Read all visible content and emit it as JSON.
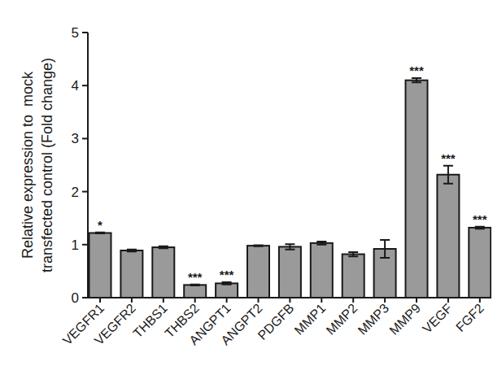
{
  "chart_data": {
    "type": "bar",
    "ylabel": [
      "Relative expression to  mock",
      "transfected control (Fold change)"
    ],
    "categories": [
      "VEGFR1",
      "VEGFR2",
      "THBS1",
      "THBS2",
      "ANGPT1",
      "ANGPT2",
      "PDGFB",
      "MMP1",
      "MMP2",
      "MMP3",
      "MMP9",
      "VEGF",
      "FGF2"
    ],
    "values": [
      1.22,
      0.89,
      0.95,
      0.24,
      0.27,
      0.98,
      0.96,
      1.03,
      0.82,
      0.92,
      4.1,
      2.32,
      1.32
    ],
    "errors": [
      0.01,
      0.02,
      0.02,
      0.01,
      0.02,
      0.01,
      0.05,
      0.03,
      0.04,
      0.17,
      0.04,
      0.17,
      0.02
    ],
    "significance": [
      "*",
      null,
      null,
      "***",
      "***",
      null,
      null,
      null,
      null,
      null,
      "***",
      "***",
      "***"
    ],
    "color": "#9a9a9a",
    "ylim": [
      0,
      5
    ],
    "yticks": [
      0,
      1,
      2,
      3,
      4,
      5
    ],
    "grid": false
  }
}
